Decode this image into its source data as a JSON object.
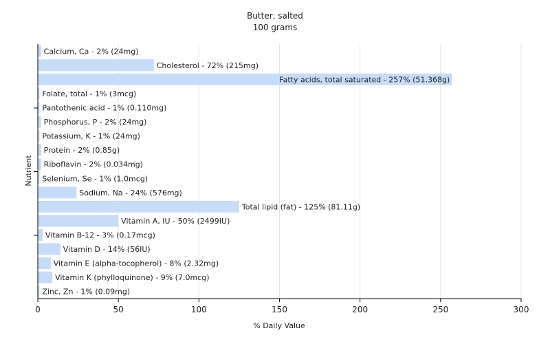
{
  "chart_data": {
    "type": "bar",
    "orientation": "horizontal",
    "title": "Butter, salted",
    "subtitle": "100 grams",
    "xlabel": "% Daily Value",
    "ylabel": "Nutrient",
    "xlim": [
      0,
      300
    ],
    "xticks": [
      "0",
      "50",
      "100",
      "150",
      "200",
      "250",
      "300"
    ],
    "grid": "vertical",
    "bar_color": "#c6dcf8",
    "categories": [
      "Calcium, Ca",
      "Cholesterol",
      "Fatty acids, total saturated",
      "Folate, total",
      "Pantothenic acid",
      "Phosphorus, P",
      "Potassium, K",
      "Protein",
      "Riboflavin",
      "Selenium, Se",
      "Sodium, Na",
      "Total lipid (fat)",
      "Vitamin A, IU",
      "Vitamin B-12",
      "Vitamin D",
      "Vitamin E (alpha-tocopherol)",
      "Vitamin K (phylloquinone)",
      "Zinc, Zn"
    ],
    "values": [
      2,
      72,
      257,
      1,
      1,
      2,
      1,
      2,
      2,
      1,
      24,
      125,
      50,
      3,
      14,
      8,
      9,
      1
    ],
    "labels": [
      "Calcium, Ca - 2% (24mg)",
      "Cholesterol - 72% (215mg)",
      "Fatty acids, total saturated - 257% (51.368g)",
      "Folate, total - 1% (3mcg)",
      "Pantothenic acid - 1% (0.110mg)",
      "Phosphorus, P - 2% (24mg)",
      "Potassium, K - 1% (24mg)",
      "Protein - 2% (0.85g)",
      "Riboflavin - 2% (0.034mg)",
      "Selenium, Se - 1% (1.0mcg)",
      "Sodium, Na - 24% (576mg)",
      "Total lipid (fat) - 125% (81.11g)",
      "Vitamin A, IU - 50% (2499IU)",
      "Vitamin B-12 - 3% (0.17mcg)",
      "Vitamin D - 14% (56IU)",
      "Vitamin E (alpha-tocopherol) - 8% (2.32mg)",
      "Vitamin K (phylloquinone) - 9% (7.0mcg)",
      "Zinc, Zn - 1% (0.09mg)"
    ]
  }
}
